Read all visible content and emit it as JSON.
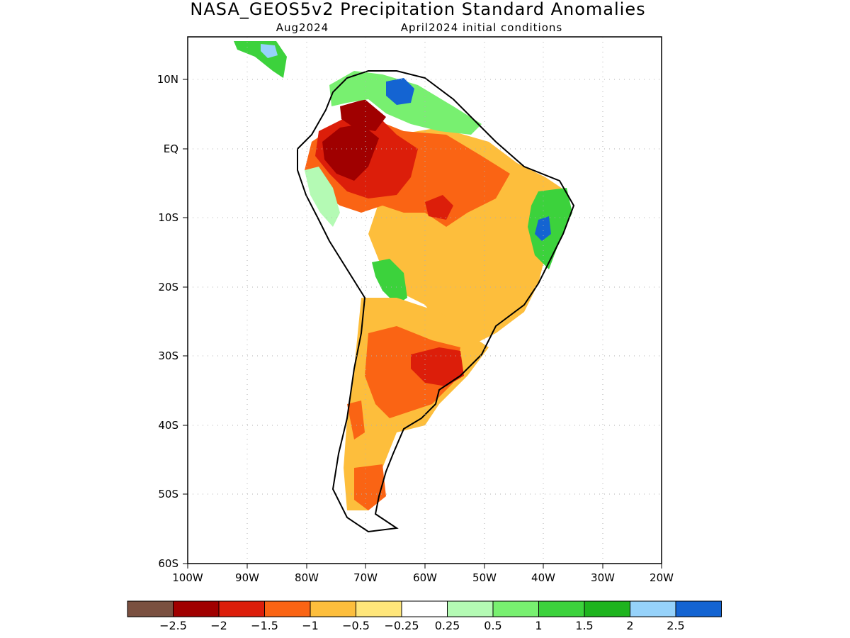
{
  "header": {
    "title": "NASA_GEOS5v2 Precipitation Standard Anomalies",
    "month": "Aug2024",
    "init": "April2024 initial conditions"
  },
  "map": {
    "lon_range": [
      -100,
      -20
    ],
    "lat_range": [
      -60,
      5
    ],
    "grid": "dotted",
    "lat_ticks": [
      "10N",
      "EQ",
      "10S",
      "20S",
      "30S",
      "40S",
      "50S",
      "60S"
    ],
    "lon_ticks": [
      "100W",
      "90W",
      "80W",
      "70W",
      "60W",
      "50W",
      "40W",
      "30W",
      "20W"
    ]
  },
  "colorbar": {
    "colors": [
      "#7a5040",
      "#a00000",
      "#dc1e0a",
      "#fa6414",
      "#fdbe3c",
      "#ffe67a",
      "#ffffff",
      "#b4fab4",
      "#78f070",
      "#3cd23c",
      "#1eb41e",
      "#96d2fa",
      "#1464d2"
    ],
    "labels": [
      "−2.5",
      "−2",
      "−1.5",
      "−1",
      "−0.5",
      "−0.25",
      "0.25",
      "0.5",
      "1",
      "1.5",
      "2",
      "2.5"
    ]
  }
}
